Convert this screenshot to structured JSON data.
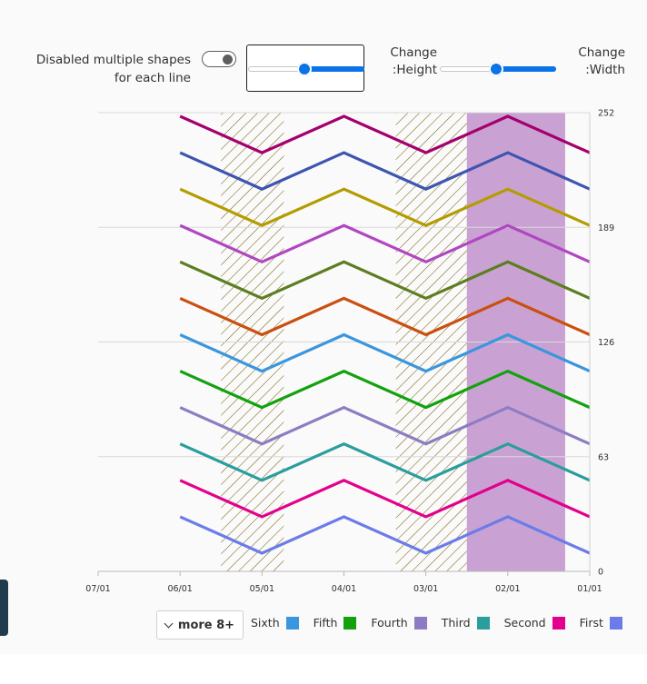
{
  "controls": {
    "toggle_label": "Disabled multiple shapes for each line",
    "height_label": "Change :Height",
    "width_label": "Change :Width",
    "bordered_slider_value": 0.48,
    "height_slider_value": 0.48,
    "width_slider_value": 0.48
  },
  "chart_data": {
    "type": "line",
    "x_ticks": [
      "07/01",
      "06/01",
      "05/01",
      "04/01",
      "03/01",
      "02/01",
      "01/01"
    ],
    "y_ticks": [
      0,
      63,
      126,
      189,
      252
    ],
    "ylim": [
      0,
      252
    ],
    "x_axis_reversed": true,
    "y_axis_position": "right",
    "grid": true,
    "x": [
      "06/01",
      "05/01",
      "04/01",
      "03/01",
      "02/01",
      "01/01"
    ],
    "series": [
      {
        "name": "First",
        "color": "#6b7ce8",
        "values": [
          30,
          10,
          30,
          10,
          30,
          10
        ]
      },
      {
        "name": "Second",
        "color": "#e3008c",
        "values": [
          50,
          30,
          50,
          30,
          50,
          30
        ]
      },
      {
        "name": "Third",
        "color": "#2a9d9d",
        "values": [
          70,
          50,
          70,
          50,
          70,
          50
        ]
      },
      {
        "name": "Fourth",
        "color": "#8e7cc3",
        "values": [
          90,
          70,
          90,
          70,
          90,
          70
        ]
      },
      {
        "name": "Fifth",
        "color": "#13a10e",
        "values": [
          110,
          90,
          110,
          90,
          110,
          90
        ]
      },
      {
        "name": "Sixth",
        "color": "#3a96dd",
        "values": [
          130,
          110,
          130,
          110,
          130,
          110
        ]
      },
      {
        "color": "#ca5010",
        "values": [
          150,
          130,
          150,
          130,
          150,
          130
        ]
      },
      {
        "color": "#5c7e1f",
        "values": [
          170,
          150,
          170,
          150,
          170,
          150
        ]
      },
      {
        "color": "#b146c2",
        "values": [
          190,
          170,
          190,
          170,
          190,
          170
        ]
      },
      {
        "color": "#b39c00",
        "values": [
          210,
          190,
          210,
          190,
          210,
          190
        ]
      },
      {
        "color": "#3e55b0",
        "values": [
          230,
          210,
          230,
          210,
          230,
          210
        ]
      },
      {
        "color": "#a4006e",
        "values": [
          250,
          230,
          250,
          230,
          250,
          230
        ]
      }
    ],
    "highlight_regions": [
      {
        "from": "05/16",
        "to": "04/23",
        "fill": "hatch"
      },
      {
        "from": "03/12",
        "to": "02/16",
        "fill": "hatch"
      },
      {
        "from": "02/16",
        "to": "01/10",
        "fill": "#c9a2d3"
      }
    ],
    "legend": {
      "more_label": "more 8+",
      "items": [
        {
          "name": "Sixth",
          "color": "#3a96dd"
        },
        {
          "name": "Fifth",
          "color": "#13a10e"
        },
        {
          "name": "Fourth",
          "color": "#8e7cc3"
        },
        {
          "name": "Third",
          "color": "#2a9d9d"
        },
        {
          "name": "Second",
          "color": "#e3008c"
        },
        {
          "name": "First",
          "color": "#6b7ce8"
        }
      ]
    }
  }
}
